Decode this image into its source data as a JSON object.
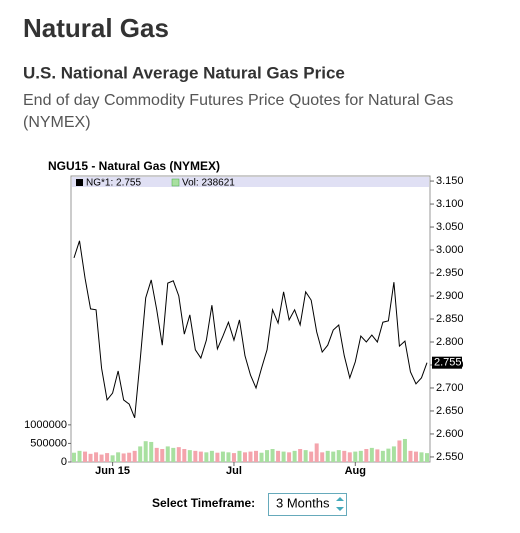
{
  "header": {
    "title": "Natural Gas",
    "subtitle": "U.S. National Average Natural Gas Price",
    "description": [
      "End of day Commodity Futures Price Quotes for Natural Gas",
      "(NYMEX)"
    ]
  },
  "chart_data": {
    "type": "line",
    "title": "NGU15 - Natural Gas (NYMEX)",
    "legend": [
      "NG*1: 2.755",
      "Vol: 238621"
    ],
    "categories": [
      null,
      null,
      null,
      null,
      null,
      null,
      null,
      "Jun 15",
      null,
      null,
      null,
      null,
      null,
      null,
      null,
      null,
      null,
      null,
      null,
      null,
      null,
      null,
      null,
      null,
      null,
      null,
      null,
      null,
      null,
      "Jul",
      null,
      null,
      null,
      null,
      null,
      null,
      null,
      null,
      null,
      null,
      null,
      null,
      null,
      null,
      null,
      null,
      null,
      null,
      null,
      null,
      null,
      "Aug",
      null,
      null,
      null,
      null,
      null,
      null,
      null,
      null,
      null,
      null,
      null,
      null,
      null
    ],
    "series": [
      {
        "name": "NG*1",
        "color": "#000000",
        "values": [
          2.983,
          3.02,
          2.939,
          2.872,
          2.87,
          2.743,
          2.674,
          2.689,
          2.737,
          2.674,
          2.665,
          2.635,
          2.761,
          2.896,
          2.935,
          2.87,
          2.793,
          2.928,
          2.933,
          2.9,
          2.817,
          2.859,
          2.783,
          2.765,
          2.804,
          2.88,
          2.785,
          2.813,
          2.843,
          2.804,
          2.848,
          2.77,
          2.728,
          2.7,
          2.743,
          2.783,
          2.87,
          2.841,
          2.909,
          2.848,
          2.87,
          2.837,
          2.909,
          2.891,
          2.822,
          2.778,
          2.793,
          2.826,
          2.837,
          2.77,
          2.722,
          2.757,
          2.813,
          2.8,
          2.815,
          2.8,
          2.843,
          2.846,
          2.93,
          2.791,
          2.802,
          2.735,
          2.709,
          2.722,
          2.755
        ]
      },
      {
        "name": "Vol",
        "type": "bar",
        "axis": "y2",
        "color": "#a8e0a0",
        "down_color": "#f4a4ac",
        "values": [
          250000,
          300000,
          280000,
          220000,
          260000,
          200000,
          240000,
          180000,
          260000,
          230000,
          250000,
          300000,
          420000,
          560000,
          540000,
          380000,
          350000,
          420000,
          380000,
          400000,
          350000,
          320000,
          300000,
          280000,
          260000,
          300000,
          250000,
          280000,
          260000,
          240000,
          300000,
          260000,
          280000,
          300000,
          250000,
          320000,
          350000,
          300000,
          280000,
          260000,
          300000,
          350000,
          320000,
          280000,
          500000,
          260000,
          300000,
          280000,
          320000,
          300000,
          260000,
          280000,
          300000,
          350000,
          380000,
          340000,
          300000,
          360000,
          420000,
          580000,
          620000,
          300000,
          280000,
          260000,
          238621
        ]
      }
    ],
    "ylim": [
      2.539,
      3.161
    ],
    "yticks": [
      {
        "value": 2.55,
        "label": "2.550"
      },
      {
        "value": 2.6,
        "label": "2.600"
      },
      {
        "value": 2.65,
        "label": "2.650"
      },
      {
        "value": 2.7,
        "label": "2.700"
      },
      {
        "value": 2.75,
        "label": "2.750"
      },
      {
        "value": 2.8,
        "label": "2.800"
      },
      {
        "value": 2.85,
        "label": "2.850"
      },
      {
        "value": 2.9,
        "label": "2.900"
      },
      {
        "value": 2.95,
        "label": "2.950"
      },
      {
        "value": 3.0,
        "label": "3.000"
      },
      {
        "value": 3.05,
        "label": "3.050"
      },
      {
        "value": 3.1,
        "label": "3.100"
      },
      {
        "value": 3.15,
        "label": "3.150"
      }
    ],
    "y2lim": [
      0,
      7700000
    ],
    "y2ticks": [
      0,
      500000,
      1000000
    ],
    "grid": false
  },
  "controls": {
    "timeframe_label": "Select Timeframe:",
    "timeframe_value": "3 Months"
  }
}
